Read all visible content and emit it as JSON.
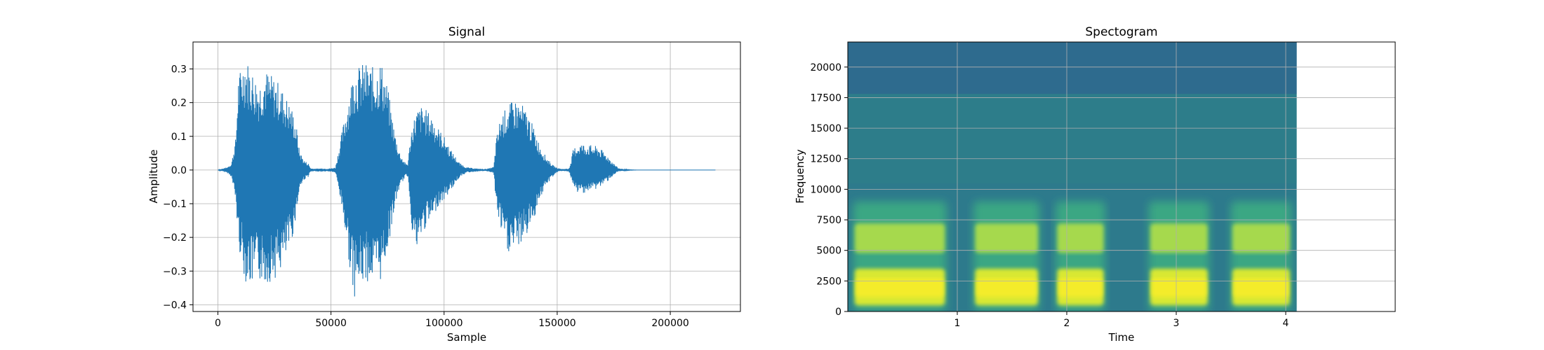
{
  "chart_data": [
    {
      "type": "line",
      "title": "Signal",
      "xlabel": "Sample",
      "ylabel": "Amplitude",
      "xlim": [
        -11000,
        231000
      ],
      "ylim": [
        -0.42,
        0.38
      ],
      "xticks": [
        0,
        50000,
        100000,
        150000,
        200000
      ],
      "xtick_labels": [
        "0",
        "50000",
        "100000",
        "150000",
        "200000"
      ],
      "yticks": [
        -0.4,
        -0.3,
        -0.2,
        -0.1,
        0.0,
        0.1,
        0.2,
        0.3
      ],
      "ytick_labels": [
        "−0.4",
        "−0.3",
        "−0.2",
        "−0.1",
        "0.0",
        "0.1",
        "0.2",
        "0.3"
      ],
      "grid": true,
      "series_color": "#1f77b4",
      "envelope": {
        "x": [
          0,
          2000,
          4000,
          6000,
          8000,
          9000,
          12000,
          15000,
          18000,
          21000,
          24000,
          27000,
          30000,
          33000,
          35000,
          36000,
          38000,
          40000,
          41000,
          43000,
          46000,
          48000,
          50000,
          52000,
          55000,
          60000,
          65000,
          70000,
          72000,
          75000,
          78000,
          80000,
          82000,
          83000,
          84000,
          85000,
          86000,
          87000,
          88000,
          90000,
          92000,
          95000,
          97000,
          100000,
          103000,
          105000,
          107000,
          110000,
          115000,
          118000,
          120000,
          122000,
          123000,
          125000,
          128000,
          131000,
          134000,
          137000,
          140000,
          142000,
          145000,
          148000,
          150000,
          152000,
          155000,
          156000,
          157000,
          158000,
          160000,
          164000,
          168000,
          172000,
          175000,
          177000,
          179000,
          181000,
          185000,
          190000,
          200000,
          210000,
          220000
        ],
        "upper": [
          0.0,
          0.004,
          0.008,
          0.02,
          0.1,
          0.28,
          0.34,
          0.3,
          0.26,
          0.3,
          0.28,
          0.26,
          0.22,
          0.18,
          0.12,
          0.06,
          0.03,
          0.02,
          0.005,
          0.004,
          0.005,
          0.004,
          0.005,
          0.008,
          0.12,
          0.3,
          0.32,
          0.3,
          0.33,
          0.25,
          0.12,
          0.06,
          0.03,
          0.02,
          0.02,
          0.09,
          0.14,
          0.16,
          0.18,
          0.19,
          0.18,
          0.16,
          0.13,
          0.1,
          0.06,
          0.04,
          0.02,
          0.008,
          0.004,
          0.003,
          0.005,
          0.01,
          0.09,
          0.16,
          0.19,
          0.21,
          0.2,
          0.17,
          0.12,
          0.08,
          0.04,
          0.015,
          0.006,
          0.003,
          0.004,
          0.02,
          0.06,
          0.07,
          0.08,
          0.075,
          0.07,
          0.045,
          0.02,
          0.006,
          0.003,
          0.001,
          0.0,
          0.0,
          0.0,
          0.0,
          0.0
        ],
        "lower": [
          0.0,
          -0.004,
          -0.008,
          -0.02,
          -0.1,
          -0.22,
          -0.33,
          -0.35,
          -0.33,
          -0.34,
          -0.33,
          -0.31,
          -0.27,
          -0.2,
          -0.12,
          -0.06,
          -0.03,
          -0.02,
          -0.005,
          -0.004,
          -0.005,
          -0.004,
          -0.005,
          -0.008,
          -0.12,
          -0.38,
          -0.33,
          -0.34,
          -0.33,
          -0.24,
          -0.12,
          -0.06,
          -0.03,
          -0.02,
          -0.02,
          -0.1,
          -0.19,
          -0.22,
          -0.25,
          -0.2,
          -0.17,
          -0.15,
          -0.11,
          -0.09,
          -0.06,
          -0.04,
          -0.02,
          -0.008,
          -0.004,
          -0.003,
          -0.005,
          -0.01,
          -0.11,
          -0.18,
          -0.25,
          -0.24,
          -0.22,
          -0.19,
          -0.14,
          -0.09,
          -0.05,
          -0.02,
          -0.006,
          -0.003,
          -0.004,
          -0.02,
          -0.055,
          -0.065,
          -0.07,
          -0.065,
          -0.055,
          -0.035,
          -0.015,
          -0.005,
          -0.003,
          -0.001,
          0.0,
          0.0,
          0.0,
          0.0,
          0.0
        ]
      }
    },
    {
      "type": "heatmap",
      "title": "Spectogram",
      "xlabel": "Time",
      "ylabel": "Frequency",
      "xlim": [
        0,
        5
      ],
      "ylim": [
        0,
        22050
      ],
      "data_extent_x": [
        0,
        4.1
      ],
      "xticks": [
        1,
        2,
        3,
        4
      ],
      "xtick_labels": [
        "1",
        "2",
        "3",
        "4"
      ],
      "yticks": [
        0,
        2500,
        5000,
        7500,
        10000,
        12500,
        15000,
        17500,
        20000
      ],
      "ytick_labels": [
        "0",
        "2500",
        "5000",
        "7500",
        "10000",
        "12500",
        "15000",
        "17500",
        "20000"
      ],
      "grid": true,
      "colormap": "viridis",
      "background_color": "#2d7a8c",
      "top_band_color": "#2e6b8e",
      "segments": [
        {
          "start": 0.05,
          "end": 0.9
        },
        {
          "start": 1.15,
          "end": 1.75
        },
        {
          "start": 1.9,
          "end": 2.35
        },
        {
          "start": 2.75,
          "end": 3.3
        },
        {
          "start": 3.5,
          "end": 4.05
        }
      ]
    }
  ]
}
